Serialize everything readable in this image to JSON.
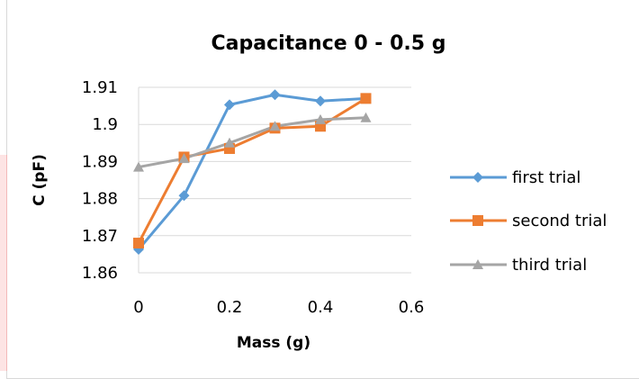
{
  "chart_data": {
    "type": "line",
    "title": "Capacitance 0 - 0.5 g",
    "xlabel": "Mass (g)",
    "ylabel": "C (pF)",
    "xlim": [
      0,
      0.6
    ],
    "ylim": [
      1.86,
      1.91
    ],
    "xticks": [
      "0",
      "0.2",
      "0.4",
      "0.6"
    ],
    "yticks": [
      "1.86",
      "1.87",
      "1.88",
      "1.89",
      "1.9",
      "1.91"
    ],
    "grid": "horizontal",
    "legend_position": "right",
    "x": [
      0,
      0.1,
      0.2,
      0.3,
      0.4,
      0.5
    ],
    "series": [
      {
        "name": "first trial",
        "color": "#5b9bd5",
        "marker": "diamond",
        "values": [
          1.8663,
          1.8808,
          1.9053,
          1.908,
          1.9063,
          1.907
        ]
      },
      {
        "name": "second trial",
        "color": "#ed7d31",
        "marker": "square",
        "values": [
          1.868,
          1.8912,
          1.8935,
          1.899,
          1.8995,
          1.907
        ]
      },
      {
        "name": "third trial",
        "color": "#a5a5a5",
        "marker": "triangle",
        "values": [
          1.8885,
          1.8908,
          1.895,
          1.8995,
          1.9013,
          1.9018
        ]
      }
    ]
  }
}
